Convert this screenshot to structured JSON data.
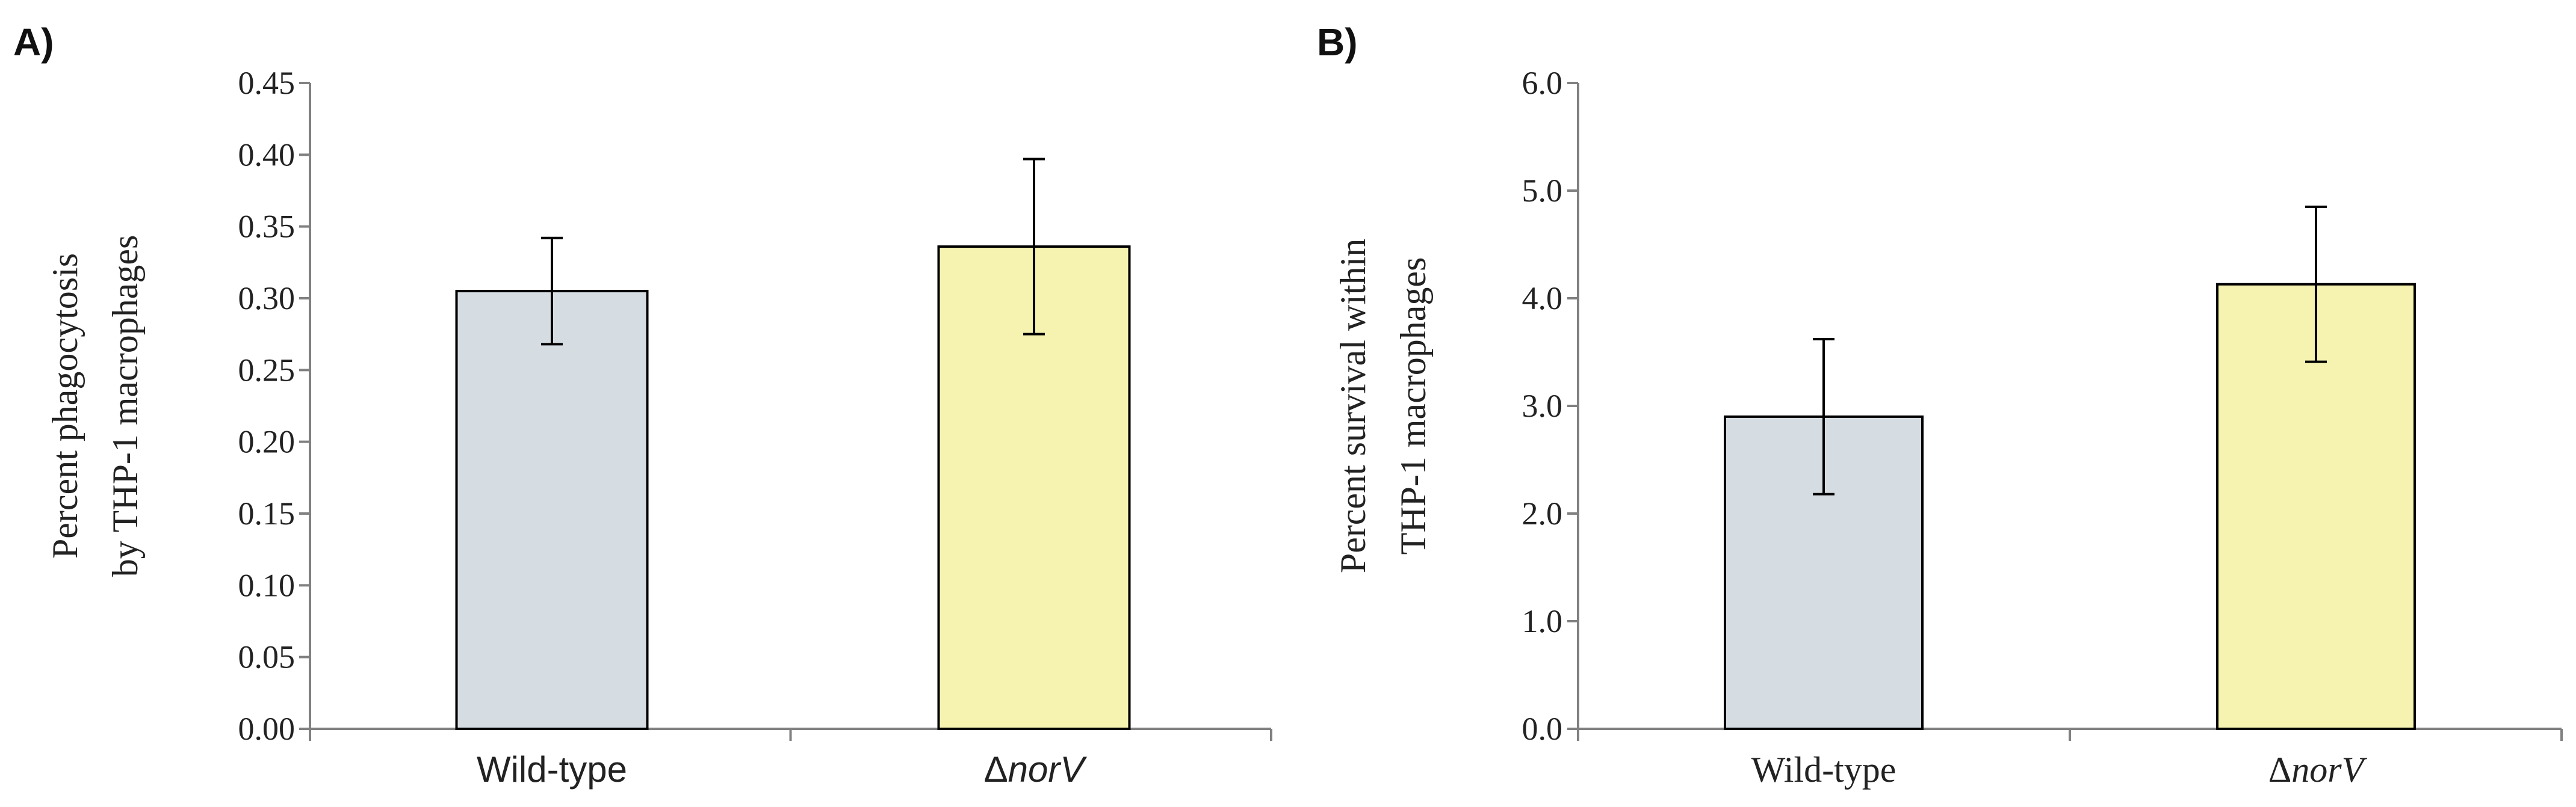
{
  "chart_data": [
    {
      "panel": "A)",
      "type": "bar",
      "categories": [
        "Wild-type",
        "ΔnorV"
      ],
      "category_parts": [
        {
          "prefix": "",
          "italic": "",
          "text": "Wild-type"
        },
        {
          "prefix": "Δ",
          "italic": "norV",
          "text": ""
        }
      ],
      "values": [
        0.305,
        0.336
      ],
      "errors": [
        0.037,
        0.061
      ],
      "colors": [
        "#d6dde2",
        "#f6f3b0"
      ],
      "ylabel_lines": [
        "Percent phagocytosis",
        "by THP-1 macrophages"
      ],
      "ylim": [
        0,
        0.45
      ],
      "yticks": [
        "0.00",
        "0.05",
        "0.10",
        "0.15",
        "0.20",
        "0.25",
        "0.30",
        "0.35",
        "0.40",
        "0.45"
      ]
    },
    {
      "panel": "B)",
      "type": "bar",
      "categories": [
        "Wild-type",
        "ΔnorV"
      ],
      "category_parts": [
        {
          "prefix": "",
          "italic": "",
          "text": "Wild-type"
        },
        {
          "prefix": "Δ",
          "italic": "norV",
          "text": ""
        }
      ],
      "values": [
        2.9,
        4.13
      ],
      "errors": [
        0.72,
        0.72
      ],
      "colors": [
        "#d6dde2",
        "#f6f3b0"
      ],
      "ylabel_lines": [
        "Percent survival within",
        "THP-1 macrophages"
      ],
      "ylim": [
        0,
        6.0
      ],
      "yticks": [
        "0.0",
        "1.0",
        "2.0",
        "3.0",
        "4.0",
        "5.0",
        "6.0"
      ]
    }
  ]
}
